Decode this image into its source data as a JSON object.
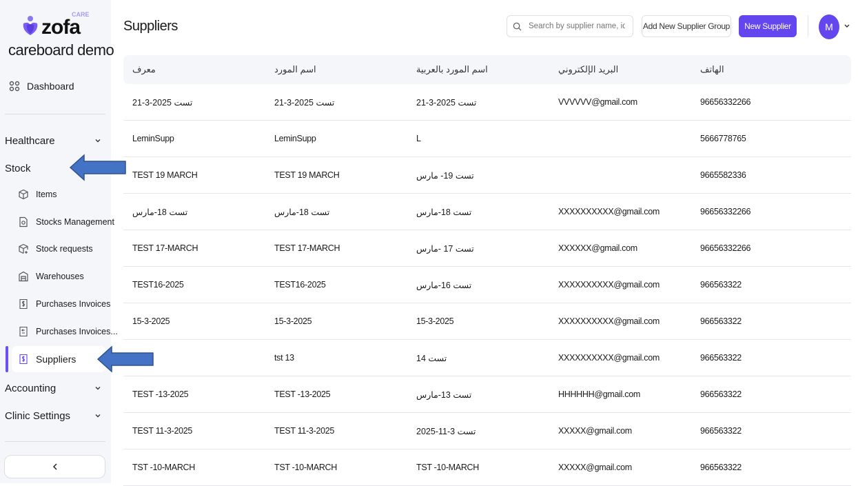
{
  "sidebar": {
    "logo": "zofa",
    "logo_tag": "CARE",
    "org": "careboard demo",
    "dashboard": "Dashboard",
    "sections": {
      "healthcare": "Healthcare",
      "stock": "Stock",
      "accounting": "Accounting",
      "clinic": "Clinic Settings"
    },
    "stock_items": [
      "Items",
      "Stocks Management",
      "Stock requests",
      "Warehouses",
      "Purchases Invoices",
      "Purchases Invoices...",
      "Suppliers"
    ]
  },
  "header": {
    "title": "Suppliers",
    "search_placeholder": "Search by supplier name, id,...",
    "add_group": "Add New Supplier Group",
    "new_supplier": "New Supplier",
    "avatar": "M"
  },
  "accent": "#6346ee",
  "table": {
    "columns": [
      "معرف",
      "اسم المورد",
      "اسم المورد بالعربية",
      "البريد الإلكتروني",
      "الهاتف"
    ],
    "rows": [
      [
        "تست 2025-3-21",
        "تست 2025-3-21",
        "تست 2025-3-21",
        "VVVVVV@gmail.com",
        "96656332266"
      ],
      [
        "LeminSupp",
        "LeminSupp",
        "L",
        "",
        "5666778765"
      ],
      [
        "TEST 19 MARCH",
        "TEST 19 MARCH",
        "تست 19- مارس",
        "",
        "9665582336"
      ],
      [
        "تست 18-مارس",
        "تست 18-مارس",
        "تست 18-مارس",
        "XXXXXXXXXX@gmail.com",
        "96656332266"
      ],
      [
        "TEST 17-MARCH",
        "TEST 17-MARCH",
        "تست 17 -مارس",
        "XXXXXX@gmail.com",
        "96656332266"
      ],
      [
        "TEST16-2025",
        "TEST16-2025",
        "تست 16-مارس",
        "XXXXXXXXXX@gmail.com",
        "966563322"
      ],
      [
        "15-3-2025",
        "15-3-2025",
        "15-3-2025",
        "XXXXXXXXXX@gmail.com",
        "966563322"
      ],
      [
        "",
        "tst 13",
        "تست 14",
        "XXXXXXXXXX@gmail.com",
        "966563322"
      ],
      [
        "TEST -13-2025",
        "TEST -13-2025",
        "تست 13-مارس",
        "HHHHHH@gmail.com",
        "966563322"
      ],
      [
        "TEST 11-3-2025",
        "TEST 11-3-2025",
        "تست 3-11-2025",
        "XXXXX@gmail.com",
        "966563322"
      ],
      [
        "TST -10-MARCH",
        "TST -10-MARCH",
        "TST -10-MARCH",
        "XXXXX@gmail.com",
        "966563322"
      ]
    ]
  }
}
